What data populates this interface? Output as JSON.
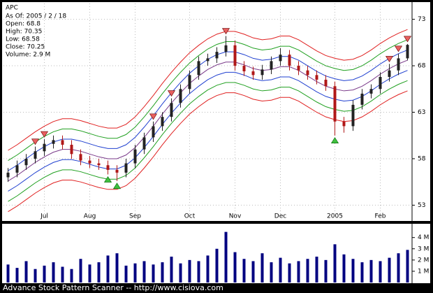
{
  "chart_data": {
    "type": "candlestick",
    "title": "APC",
    "info": [
      "As Of: 2005 / 2 / 18",
      "Open: 68.8",
      "High: 70.35",
      "Low: 68.58",
      "Close: 70.25",
      "Volume: 2.9 M"
    ],
    "footer": "Advance Stock Pattern Scanner -- http://www.cisiova.com",
    "categories": [
      null,
      null,
      null,
      null,
      "Jul",
      null,
      null,
      null,
      null,
      "Aug",
      null,
      null,
      null,
      null,
      "Sep",
      null,
      null,
      null,
      null,
      null,
      "Oct",
      null,
      null,
      null,
      null,
      "Nov",
      null,
      null,
      null,
      null,
      "Dec",
      null,
      null,
      null,
      null,
      null,
      "2005",
      null,
      null,
      null,
      null,
      "Feb",
      null,
      null,
      null
    ],
    "open": [
      56.0,
      56.5,
      57.3,
      58.0,
      58.8,
      59.6,
      60.0,
      59.5,
      58.5,
      57.8,
      57.5,
      57.3,
      56.8,
      56.5,
      57.5,
      59.0,
      60.3,
      61.5,
      62.5,
      64.0,
      65.5,
      67.0,
      68.5,
      68.8,
      69.5,
      70.2,
      68.0,
      67.4,
      67.0,
      67.6,
      68.5,
      69.2,
      68.0,
      67.5,
      67.0,
      66.5,
      65.8,
      62.0,
      61.5,
      63.8,
      65.0,
      65.5,
      66.8,
      67.5,
      68.8
    ],
    "high": [
      57.0,
      57.8,
      58.5,
      59.3,
      60.1,
      60.5,
      60.5,
      60.0,
      59.0,
      58.3,
      58.0,
      57.8,
      57.3,
      58.0,
      59.5,
      60.8,
      62.0,
      63.0,
      64.5,
      66.0,
      67.5,
      69.0,
      69.3,
      70.0,
      71.2,
      70.7,
      68.5,
      67.9,
      68.1,
      69.0,
      69.9,
      69.7,
      68.5,
      68.0,
      67.5,
      67.0,
      66.3,
      62.5,
      64.3,
      65.5,
      66.0,
      67.3,
      68.2,
      69.3,
      70.35
    ],
    "low": [
      55.5,
      56.0,
      56.8,
      57.5,
      58.3,
      59.1,
      59.0,
      58.0,
      57.3,
      57.0,
      56.8,
      56.3,
      55.6,
      56.0,
      57.0,
      58.5,
      59.8,
      61.0,
      62.0,
      63.5,
      65.0,
      66.5,
      68.0,
      68.3,
      69.0,
      67.5,
      66.9,
      66.5,
      66.5,
      67.1,
      68.0,
      67.5,
      67.0,
      66.5,
      66.0,
      65.3,
      60.5,
      60.8,
      61.0,
      63.3,
      64.5,
      65.0,
      66.3,
      67.0,
      68.58
    ],
    "close": [
      56.5,
      57.3,
      58.0,
      58.8,
      59.6,
      60.0,
      59.5,
      58.5,
      57.8,
      57.5,
      57.3,
      56.8,
      56.5,
      57.5,
      59.0,
      60.3,
      61.5,
      62.5,
      64.0,
      65.5,
      67.0,
      68.5,
      68.8,
      69.5,
      70.2,
      68.0,
      67.4,
      67.0,
      67.6,
      68.5,
      69.2,
      68.0,
      67.5,
      67.0,
      66.5,
      65.8,
      62.0,
      61.5,
      63.8,
      65.0,
      65.5,
      66.8,
      67.5,
      68.8,
      70.25
    ],
    "up_color": "#222222",
    "down_color": "#b01818",
    "bands": [
      {
        "color": "#e02020",
        "values": [
          58.9,
          59.5,
          60.2,
          60.9,
          61.5,
          62.0,
          62.3,
          62.3,
          62.1,
          61.8,
          61.5,
          61.3,
          61.3,
          61.7,
          62.5,
          63.6,
          64.8,
          66.1,
          67.3,
          68.4,
          69.4,
          70.2,
          70.9,
          71.4,
          71.7,
          71.7,
          71.4,
          71.0,
          70.8,
          70.9,
          71.2,
          71.2,
          70.8,
          70.2,
          69.6,
          69.1,
          68.8,
          68.6,
          68.7,
          69.1,
          69.7,
          70.4,
          71.0,
          71.5,
          71.9
        ]
      },
      {
        "color": "#20a020",
        "values": [
          57.8,
          58.4,
          59.1,
          59.8,
          60.4,
          60.9,
          61.2,
          61.2,
          61.0,
          60.7,
          60.4,
          60.2,
          60.2,
          60.6,
          61.4,
          62.5,
          63.7,
          65.0,
          66.2,
          67.3,
          68.3,
          69.1,
          69.8,
          70.3,
          70.6,
          70.6,
          70.3,
          69.9,
          69.7,
          69.8,
          70.1,
          70.1,
          69.7,
          69.1,
          68.5,
          68.0,
          67.7,
          67.5,
          67.6,
          68.0,
          68.6,
          69.3,
          69.9,
          70.4,
          70.8
        ]
      },
      {
        "color": "#2040d0",
        "values": [
          56.7,
          57.3,
          58.0,
          58.7,
          59.3,
          59.8,
          60.1,
          60.1,
          59.9,
          59.6,
          59.3,
          59.1,
          59.1,
          59.5,
          60.3,
          61.4,
          62.6,
          63.9,
          65.1,
          66.2,
          67.2,
          68.0,
          68.7,
          69.2,
          69.5,
          69.5,
          69.2,
          68.8,
          68.6,
          68.7,
          69.0,
          69.0,
          68.6,
          68.0,
          67.4,
          66.9,
          66.6,
          66.4,
          66.5,
          66.9,
          67.5,
          68.2,
          68.8,
          69.3,
          69.7
        ]
      },
      {
        "color": "#7a3a8a",
        "values": [
          55.6,
          56.2,
          56.9,
          57.6,
          58.2,
          58.7,
          59.0,
          59.0,
          58.8,
          58.5,
          58.2,
          58.0,
          58.0,
          58.4,
          59.2,
          60.3,
          61.5,
          62.8,
          64.0,
          65.1,
          66.1,
          66.9,
          67.6,
          68.1,
          68.4,
          68.4,
          68.1,
          67.7,
          67.5,
          67.6,
          67.9,
          67.9,
          67.5,
          66.9,
          66.3,
          65.8,
          65.5,
          65.3,
          65.4,
          65.8,
          66.4,
          67.1,
          67.7,
          68.2,
          68.6
        ]
      },
      {
        "color": "#2040d0",
        "values": [
          54.5,
          55.1,
          55.8,
          56.5,
          57.1,
          57.6,
          57.9,
          57.9,
          57.7,
          57.4,
          57.1,
          56.9,
          56.9,
          57.3,
          58.1,
          59.2,
          60.4,
          61.7,
          62.9,
          64.0,
          65.0,
          65.8,
          66.5,
          67.0,
          67.3,
          67.3,
          67.0,
          66.6,
          66.4,
          66.5,
          66.8,
          66.8,
          66.4,
          65.8,
          65.2,
          64.7,
          64.4,
          64.2,
          64.3,
          64.7,
          65.3,
          66.0,
          66.6,
          67.1,
          67.5
        ]
      },
      {
        "color": "#20a020",
        "values": [
          53.4,
          54.0,
          54.7,
          55.4,
          56.0,
          56.5,
          56.8,
          56.8,
          56.6,
          56.3,
          56.0,
          55.8,
          55.8,
          56.2,
          57.0,
          58.1,
          59.3,
          60.6,
          61.8,
          62.9,
          63.9,
          64.7,
          65.4,
          65.9,
          66.2,
          66.2,
          65.9,
          65.5,
          65.3,
          65.4,
          65.7,
          65.7,
          65.3,
          64.7,
          64.1,
          63.6,
          63.3,
          63.1,
          63.2,
          63.6,
          64.2,
          64.9,
          65.5,
          66.0,
          66.4
        ]
      },
      {
        "color": "#e02020",
        "values": [
          52.3,
          52.9,
          53.6,
          54.3,
          54.9,
          55.4,
          55.7,
          55.7,
          55.5,
          55.2,
          54.9,
          54.7,
          54.7,
          55.1,
          55.9,
          57.0,
          58.2,
          59.5,
          60.7,
          61.8,
          62.8,
          63.6,
          64.3,
          64.8,
          65.1,
          65.1,
          64.8,
          64.4,
          64.2,
          64.3,
          64.6,
          64.6,
          64.2,
          63.6,
          63.0,
          62.5,
          62.2,
          62.0,
          62.1,
          62.5,
          63.1,
          63.8,
          64.4,
          64.9,
          65.3
        ]
      }
    ],
    "sell_signals": [
      3,
      4,
      16,
      18,
      24,
      42,
      43,
      44
    ],
    "buy_signals": [
      11,
      12,
      36
    ],
    "sell_color": "#e86060",
    "buy_color": "#40c040",
    "ylim": [
      51.3,
      74.7
    ],
    "yticks": [
      53,
      58,
      63,
      68,
      73
    ],
    "grid": true,
    "volume": {
      "type": "bar",
      "color": "#000080",
      "values": [
        1.6,
        1.3,
        1.9,
        1.2,
        1.5,
        1.8,
        1.4,
        1.2,
        2.1,
        1.6,
        1.8,
        2.4,
        2.6,
        1.5,
        1.7,
        1.9,
        1.6,
        1.8,
        2.3,
        1.7,
        2.0,
        1.9,
        2.4,
        3.0,
        4.5,
        2.7,
        2.1,
        1.9,
        2.6,
        1.8,
        2.2,
        1.7,
        1.9,
        2.1,
        2.3,
        2.0,
        3.4,
        2.5,
        2.1,
        1.8,
        2.0,
        1.9,
        2.2,
        2.6,
        2.9
      ],
      "ylim": [
        0,
        5.1
      ],
      "yticks": [
        {
          "value": 1,
          "label": "1 M"
        },
        {
          "value": 2,
          "label": "2 M"
        },
        {
          "value": 3,
          "label": "3 M"
        },
        {
          "value": 4,
          "label": "4 M"
        }
      ]
    }
  }
}
